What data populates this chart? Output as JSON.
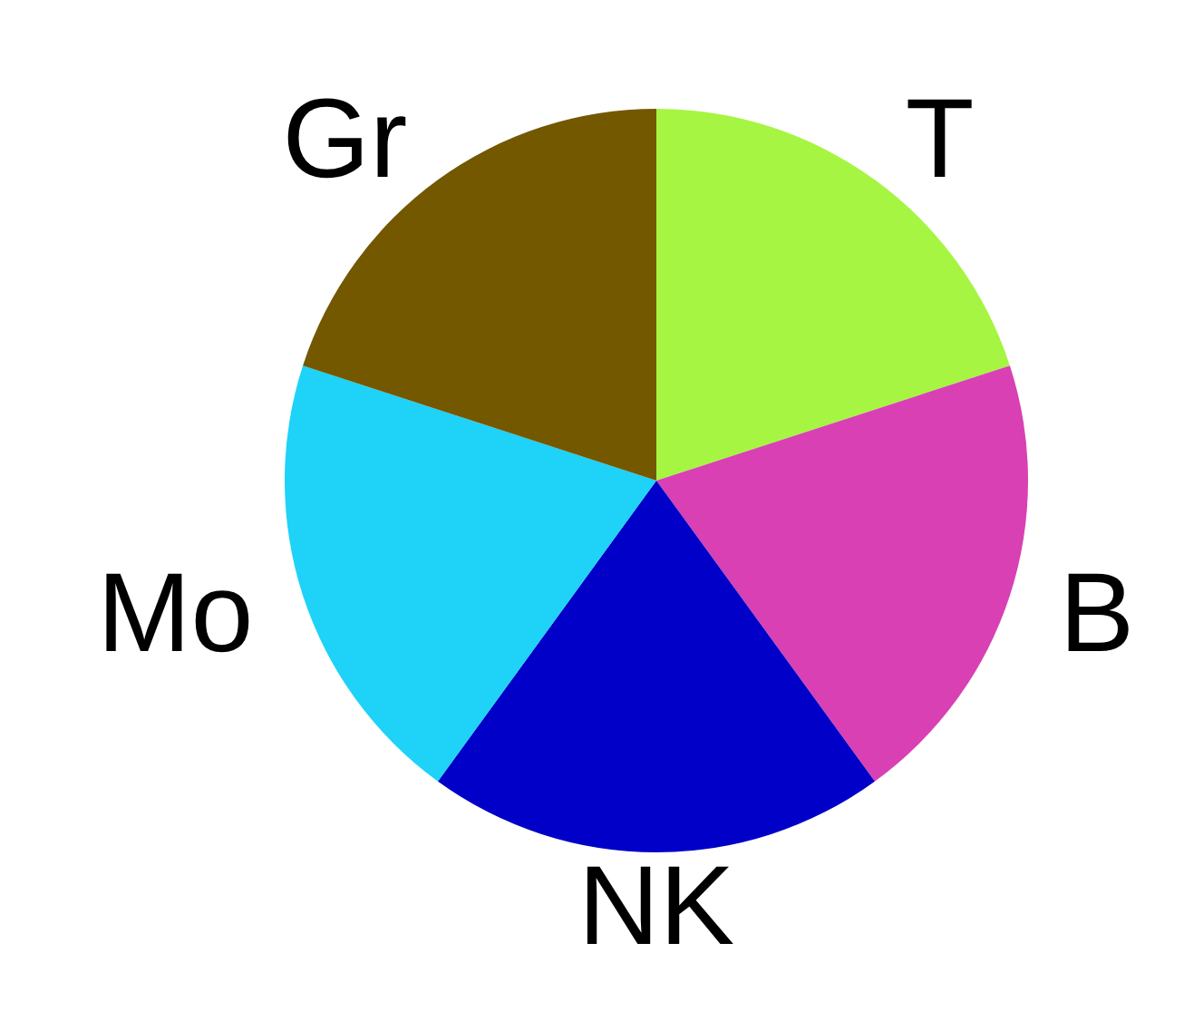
{
  "chart_data": {
    "type": "pie",
    "categories": [
      "T",
      "B",
      "NK",
      "Mo",
      "Gr"
    ],
    "values": [
      20,
      20,
      20,
      20,
      20
    ],
    "colors": [
      "#a6f542",
      "#d840b4",
      "#0000c8",
      "#1ed2f8",
      "#735800"
    ]
  }
}
